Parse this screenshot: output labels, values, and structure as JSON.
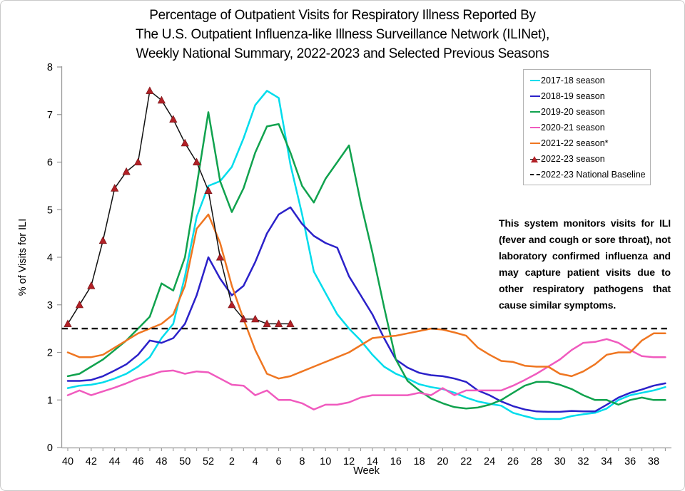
{
  "title": {
    "line1": "Percentage of Outpatient Visits for Respiratory Illness Reported By",
    "line2": "The U.S. Outpatient Influenza-like Illness Surveillance Network (ILINet),",
    "line3": "Weekly National Summary, 2022-2023 and Selected Previous Seasons"
  },
  "y_axis": {
    "label": "% of Visits for ILI"
  },
  "x_axis": {
    "label": "Week"
  },
  "annotation": {
    "text": "This system monitors visits for ILI (fever and cough or sore throat), not laboratory confirmed influenza and may capture patient visits due to other respiratory pathogens that cause similar symptoms."
  },
  "legend": {
    "items": [
      {
        "label": "2017-18 season",
        "color": "#00DCEC",
        "swatch": "line"
      },
      {
        "label": "2018-19 season",
        "color": "#2B21C9",
        "swatch": "line"
      },
      {
        "label": "2019-20 season",
        "color": "#10A24E",
        "swatch": "line"
      },
      {
        "label": "2020-21 season",
        "color": "#F05ABE",
        "swatch": "line"
      },
      {
        "label": "2021-22 season*",
        "color": "#EF7621",
        "swatch": "line"
      },
      {
        "label": "2022-23 season",
        "color": "#B22026",
        "swatch": "triangle-line"
      },
      {
        "label": "2022-23 National Baseline",
        "color": "#111111",
        "swatch": "dashed"
      }
    ]
  },
  "chart_data": {
    "type": "line",
    "title": "Percentage of Outpatient Visits for Respiratory Illness (ILINet), Weekly National Summary, 2022-2023 and Selected Previous Seasons",
    "xlabel": "Week",
    "ylabel": "% of Visits for ILI",
    "ylim": [
      0,
      8
    ],
    "grid": false,
    "legend_position": "upper right",
    "y_ticks": [
      0,
      1,
      2,
      3,
      4,
      5,
      6,
      7,
      8
    ],
    "x_weeks": [
      40,
      41,
      42,
      43,
      44,
      45,
      46,
      47,
      48,
      49,
      50,
      51,
      52,
      1,
      2,
      3,
      4,
      5,
      6,
      7,
      8,
      9,
      10,
      11,
      12,
      13,
      14,
      15,
      16,
      17,
      18,
      19,
      20,
      21,
      22,
      23,
      24,
      25,
      26,
      27,
      28,
      29,
      30,
      31,
      32,
      33,
      34,
      35,
      36,
      37,
      38,
      39
    ],
    "x_tick_labels": [
      "40",
      "42",
      "44",
      "46",
      "48",
      "50",
      "52",
      "2",
      "4",
      "6",
      "8",
      "10",
      "12",
      "14",
      "16",
      "18",
      "20",
      "22",
      "24",
      "26",
      "28",
      "30",
      "32",
      "34",
      "36",
      "38"
    ],
    "baseline_label": "2022-23 National Baseline",
    "baseline_value": 2.5,
    "series": [
      {
        "name": "2017-18 season",
        "color": "#00DCEC",
        "values": [
          1.25,
          1.3,
          1.32,
          1.37,
          1.45,
          1.55,
          1.7,
          1.9,
          2.3,
          2.6,
          3.6,
          4.85,
          5.5,
          5.6,
          5.9,
          6.5,
          7.2,
          7.5,
          7.35,
          5.95,
          4.9,
          3.7,
          3.25,
          2.8,
          2.5,
          2.25,
          1.95,
          1.7,
          1.55,
          1.45,
          1.33,
          1.27,
          1.23,
          1.15,
          1.05,
          0.97,
          0.92,
          0.88,
          0.73,
          0.66,
          0.6,
          0.6,
          0.6,
          0.66,
          0.7,
          0.73,
          0.82,
          1.0,
          1.1,
          1.15,
          1.2,
          1.27
        ]
      },
      {
        "name": "2018-19 season",
        "color": "#2B21C9",
        "values": [
          1.4,
          1.4,
          1.42,
          1.5,
          1.62,
          1.75,
          1.95,
          2.25,
          2.2,
          2.3,
          2.6,
          3.2,
          4.0,
          3.55,
          3.2,
          3.4,
          3.9,
          4.5,
          4.9,
          5.05,
          4.7,
          4.45,
          4.3,
          4.2,
          3.6,
          3.2,
          2.8,
          2.3,
          1.85,
          1.68,
          1.57,
          1.52,
          1.5,
          1.45,
          1.38,
          1.2,
          1.1,
          0.97,
          0.87,
          0.8,
          0.76,
          0.75,
          0.75,
          0.77,
          0.76,
          0.76,
          0.9,
          1.05,
          1.15,
          1.22,
          1.3,
          1.35
        ]
      },
      {
        "name": "2019-20 season",
        "color": "#10A24E",
        "values": [
          1.5,
          1.55,
          1.7,
          1.85,
          2.05,
          2.25,
          2.5,
          2.75,
          3.45,
          3.3,
          4.0,
          5.5,
          7.05,
          5.6,
          4.95,
          5.45,
          6.2,
          6.75,
          6.8,
          6.2,
          5.5,
          5.15,
          5.65,
          6.0,
          6.35,
          5.15,
          4.1,
          2.95,
          1.85,
          1.4,
          1.2,
          1.03,
          0.93,
          0.85,
          0.82,
          0.84,
          0.9,
          1.0,
          1.15,
          1.3,
          1.38,
          1.38,
          1.32,
          1.23,
          1.1,
          1.0,
          1.0,
          0.9,
          1.0,
          1.05,
          1.0,
          1.0
        ]
      },
      {
        "name": "2020-21 season",
        "color": "#F05ABE",
        "values": [
          1.1,
          1.2,
          1.1,
          1.18,
          1.26,
          1.35,
          1.45,
          1.52,
          1.6,
          1.62,
          1.55,
          1.6,
          1.58,
          1.45,
          1.32,
          1.3,
          1.1,
          1.2,
          1.0,
          1.0,
          0.93,
          0.8,
          0.9,
          0.9,
          0.95,
          1.05,
          1.1,
          1.1,
          1.1,
          1.1,
          1.15,
          1.1,
          1.25,
          1.1,
          1.2,
          1.2,
          1.2,
          1.2,
          1.3,
          1.42,
          1.55,
          1.7,
          1.85,
          2.05,
          2.2,
          2.22,
          2.28,
          2.2,
          2.05,
          1.92,
          1.9,
          1.9
        ]
      },
      {
        "name": "2021-22 season*",
        "color": "#EF7621",
        "values": [
          2.0,
          1.9,
          1.9,
          1.95,
          2.1,
          2.25,
          2.4,
          2.5,
          2.6,
          2.8,
          3.4,
          4.6,
          4.9,
          4.3,
          3.4,
          2.7,
          2.05,
          1.55,
          1.45,
          1.5,
          1.6,
          1.7,
          1.8,
          1.9,
          2.0,
          2.15,
          2.3,
          2.33,
          2.35,
          2.4,
          2.45,
          2.5,
          2.48,
          2.42,
          2.35,
          2.1,
          1.95,
          1.82,
          1.8,
          1.72,
          1.7,
          1.7,
          1.55,
          1.5,
          1.6,
          1.75,
          1.95,
          2.0,
          2.0,
          2.25,
          2.4,
          2.4
        ]
      },
      {
        "name": "2022-23 season",
        "color": "#111111",
        "marker": "triangle",
        "marker_color": "#B22026",
        "values": [
          2.6,
          3.0,
          3.4,
          4.35,
          5.45,
          5.8,
          6.0,
          7.5,
          7.3,
          6.9,
          6.4,
          6.0,
          5.4,
          4.0,
          3.0,
          2.7,
          2.7,
          2.6,
          2.6,
          2.6,
          null,
          null,
          null,
          null,
          null,
          null,
          null,
          null,
          null,
          null,
          null,
          null,
          null,
          null,
          null,
          null,
          null,
          null,
          null,
          null,
          null,
          null,
          null,
          null,
          null,
          null,
          null,
          null,
          null,
          null,
          null,
          null
        ]
      }
    ]
  }
}
